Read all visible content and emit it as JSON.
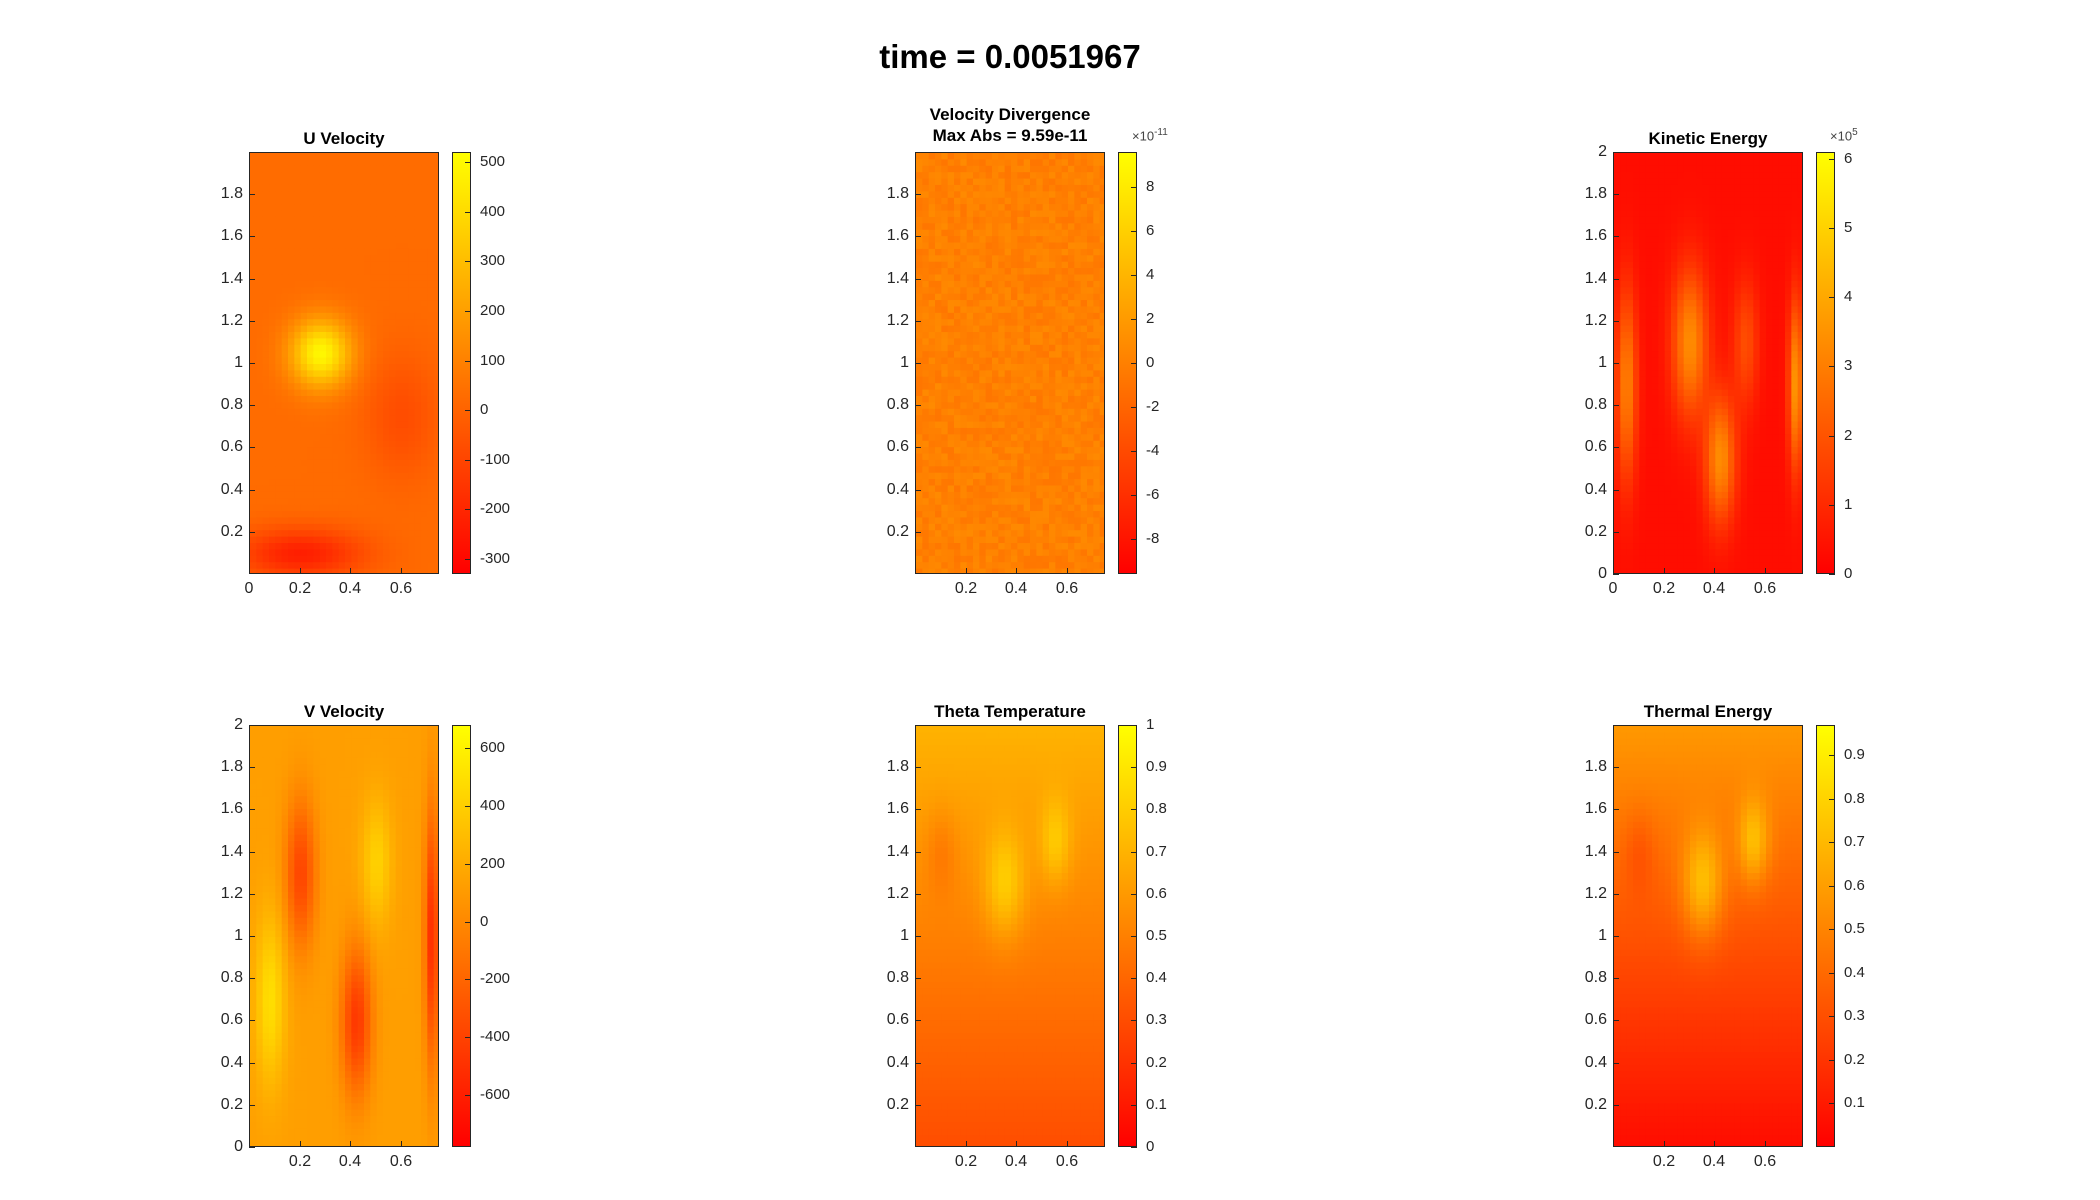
{
  "figure": {
    "title": "time = 0.0051967"
  },
  "colormap": {
    "low": "#ff0000",
    "mid": "#ff8000",
    "high": "#ffff00"
  },
  "chart_data": [
    {
      "type": "heatmap",
      "title": "U Velocity",
      "x_ticks": [
        "0",
        "0.2",
        "0.4",
        "0.6"
      ],
      "y_ticks": [
        "0.2",
        "0.4",
        "0.6",
        "0.8",
        "1",
        "1.2",
        "1.4",
        "1.6",
        "1.8"
      ],
      "xlim": [
        0,
        0.75
      ],
      "ylim": [
        0,
        2
      ],
      "colorbar": {
        "ticks": [
          "500",
          "400",
          "300",
          "200",
          "100",
          "0",
          "-100",
          "-200",
          "-300"
        ],
        "range": [
          -330,
          520
        ],
        "exponent": null
      },
      "field": {
        "base": 0.42,
        "blobs": [
          [
            0.28,
            1.05,
            0.12,
            0.16,
            0.55
          ],
          [
            0.2,
            0.1,
            0.25,
            0.12,
            -0.3
          ],
          [
            0.6,
            0.75,
            0.15,
            0.3,
            -0.12
          ]
        ]
      }
    },
    {
      "type": "heatmap",
      "title": "Velocity Divergence",
      "subtitle": "Max Abs = 9.59e-11",
      "x_ticks": [
        "0.2",
        "0.4",
        "0.6"
      ],
      "y_ticks": [
        "0.2",
        "0.4",
        "0.6",
        "0.8",
        "1",
        "1.2",
        "1.4",
        "1.6",
        "1.8"
      ],
      "xlim": [
        0,
        0.75
      ],
      "ylim": [
        0,
        2
      ],
      "colorbar": {
        "ticks": [
          "8",
          "6",
          "4",
          "2",
          "0",
          "-2",
          "-4",
          "-6",
          "-8"
        ],
        "range": [
          -9.59,
          9.59
        ],
        "exponent": "-11"
      },
      "field": {
        "base": 0.5,
        "noise": 0.08,
        "blobs": []
      }
    },
    {
      "type": "heatmap",
      "title": "Kinetic Energy",
      "x_ticks": [
        "0",
        "0.2",
        "0.4",
        "0.6"
      ],
      "y_ticks": [
        "0",
        "0.2",
        "0.4",
        "0.6",
        "0.8",
        "1",
        "1.2",
        "1.4",
        "1.6",
        "1.8",
        "2"
      ],
      "xlim": [
        0,
        0.75
      ],
      "ylim": [
        0,
        2
      ],
      "colorbar": {
        "ticks": [
          "6",
          "5",
          "4",
          "3",
          "2",
          "1",
          "0"
        ],
        "range": [
          0,
          6.1
        ],
        "exponent": "5"
      },
      "field": {
        "base": 0.05,
        "blobs": [
          [
            0.3,
            1.1,
            0.07,
            0.35,
            0.5
          ],
          [
            0.42,
            0.55,
            0.06,
            0.3,
            0.5
          ],
          [
            0.05,
            0.9,
            0.04,
            0.45,
            0.45
          ],
          [
            0.72,
            0.9,
            0.03,
            0.4,
            0.55
          ],
          [
            0.52,
            1.1,
            0.05,
            0.3,
            0.25
          ]
        ]
      }
    },
    {
      "type": "heatmap",
      "title": "V Velocity",
      "x_ticks": [
        "0.2",
        "0.4",
        "0.6"
      ],
      "y_ticks": [
        "0",
        "0.2",
        "0.4",
        "0.6",
        "0.8",
        "1",
        "1.2",
        "1.4",
        "1.6",
        "1.8",
        "2"
      ],
      "xlim": [
        0,
        0.75
      ],
      "ylim": [
        0,
        2
      ],
      "colorbar": {
        "ticks": [
          "600",
          "400",
          "200",
          "0",
          "-200",
          "-400",
          "-600"
        ],
        "range": [
          -780,
          680
        ],
        "exponent": null
      },
      "field": {
        "base": 0.62,
        "blobs": [
          [
            0.2,
            1.3,
            0.06,
            0.35,
            -0.35
          ],
          [
            0.42,
            0.6,
            0.06,
            0.35,
            -0.4
          ],
          [
            0.72,
            1.0,
            0.03,
            0.6,
            -0.45
          ],
          [
            0.08,
            0.7,
            0.06,
            0.4,
            0.25
          ],
          [
            0.5,
            1.35,
            0.06,
            0.3,
            0.2
          ]
        ]
      }
    },
    {
      "type": "heatmap",
      "title": "Theta Temperature",
      "x_ticks": [
        "0.2",
        "0.4",
        "0.6"
      ],
      "y_ticks": [
        "0.2",
        "0.4",
        "0.6",
        "0.8",
        "1",
        "1.2",
        "1.4",
        "1.6",
        "1.8"
      ],
      "xlim": [
        0,
        0.75
      ],
      "ylim": [
        0,
        2
      ],
      "colorbar": {
        "ticks": [
          "1",
          "0.9",
          "0.8",
          "0.7",
          "0.6",
          "0.5",
          "0.4",
          "0.3",
          "0.2",
          "0.1",
          "0"
        ],
        "range": [
          0,
          1
        ],
        "exponent": null
      },
      "field": {
        "base": 0.5,
        "gradient": 0.4,
        "blobs": [
          [
            0.35,
            1.25,
            0.08,
            0.25,
            0.25
          ],
          [
            0.55,
            1.45,
            0.06,
            0.2,
            0.2
          ],
          [
            0.1,
            1.4,
            0.06,
            0.2,
            -0.1
          ]
        ]
      }
    },
    {
      "type": "heatmap",
      "title": "Thermal Energy",
      "x_ticks": [
        "0.2",
        "0.4",
        "0.6"
      ],
      "y_ticks": [
        "0.2",
        "0.4",
        "0.6",
        "0.8",
        "1",
        "1.2",
        "1.4",
        "1.6",
        "1.8"
      ],
      "xlim": [
        0,
        0.75
      ],
      "ylim": [
        0,
        2
      ],
      "colorbar": {
        "ticks": [
          "0.9",
          "0.8",
          "0.7",
          "0.6",
          "0.5",
          "0.4",
          "0.3",
          "0.2",
          "0.1"
        ],
        "range": [
          0,
          0.97
        ],
        "exponent": null
      },
      "field": {
        "base": 0.32,
        "gradient": 0.55,
        "blobs": [
          [
            0.35,
            1.25,
            0.08,
            0.25,
            0.35
          ],
          [
            0.55,
            1.45,
            0.06,
            0.2,
            0.3
          ],
          [
            0.1,
            1.4,
            0.06,
            0.2,
            -0.1
          ]
        ]
      }
    }
  ]
}
